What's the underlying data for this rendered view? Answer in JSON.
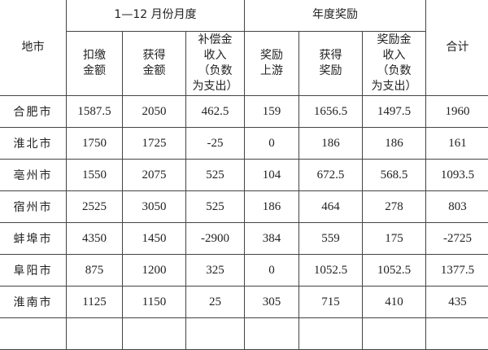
{
  "header": {
    "city": "地市",
    "group_monthly": "1—12 月份月度",
    "group_annual": "年度奖励",
    "total": "合计",
    "columns": [
      "扣缴\n金额",
      "获得\n金额",
      "补偿金\n收入\n（负数\n为支出）",
      "奖励\n上游",
      "获得\n奖励",
      "奖励金\n收入\n（负数\n为支出）"
    ]
  },
  "rows": [
    {
      "city": "合肥市",
      "values": [
        "1587.5",
        "2050",
        "462.5",
        "159",
        "1656.5",
        "1497.5",
        "1960"
      ]
    },
    {
      "city": "淮北市",
      "values": [
        "1750",
        "1725",
        "-25",
        "0",
        "186",
        "186",
        "161"
      ]
    },
    {
      "city": "亳州市",
      "values": [
        "1550",
        "2075",
        "525",
        "104",
        "672.5",
        "568.5",
        "1093.5"
      ]
    },
    {
      "city": "宿州市",
      "values": [
        "2525",
        "3050",
        "525",
        "186",
        "464",
        "278",
        "803"
      ]
    },
    {
      "city": "蚌埠市",
      "values": [
        "4350",
        "1450",
        "-2900",
        "384",
        "559",
        "175",
        "-2725"
      ]
    },
    {
      "city": "阜阳市",
      "values": [
        "875",
        "1200",
        "325",
        "0",
        "1052.5",
        "1052.5",
        "1377.5"
      ]
    },
    {
      "city": "淮南市",
      "values": [
        "1125",
        "1150",
        "25",
        "305",
        "715",
        "410",
        "435"
      ]
    }
  ]
}
